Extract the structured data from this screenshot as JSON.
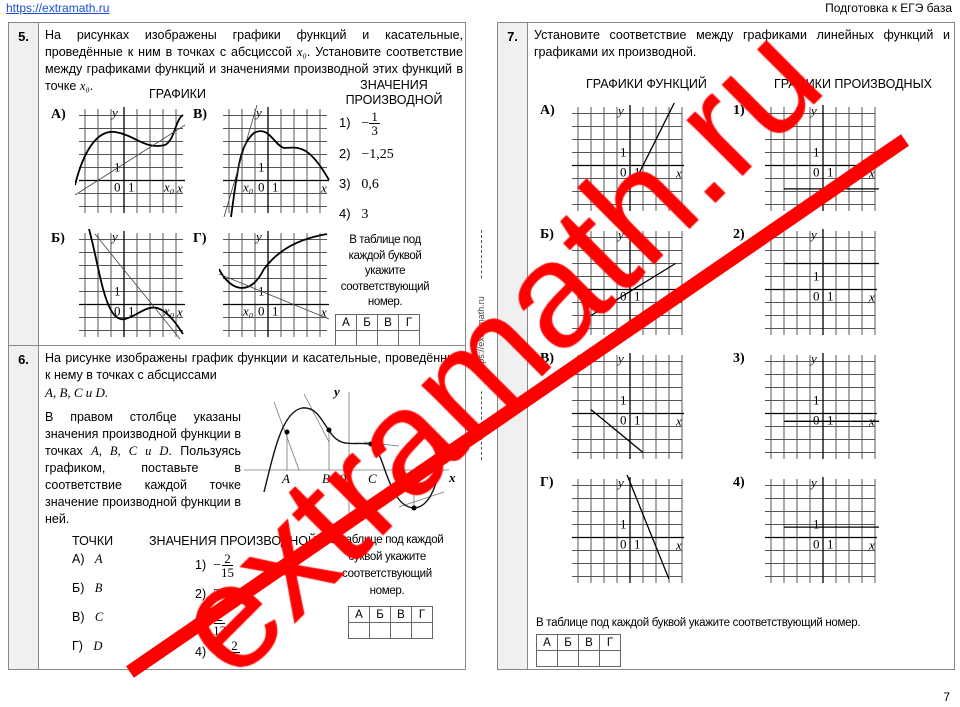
{
  "header": {
    "link": "https://extramath.ru",
    "title": "Подготовка к ЕГЭ база",
    "page": "7"
  },
  "side_url": "https://extramath.ru",
  "axes": {
    "x": "x",
    "y": "y",
    "zero": "0",
    "one": "1",
    "x0": "x₀"
  },
  "task5": {
    "num": "5.",
    "text_a": "На рисунках изображены графики функций и касательные, проведённые к ним в точках с абсциссой ",
    "x0": "x₀",
    "text_b": ". Установите соответствие между графиками функций и значениями производной этих функций в точке ",
    "text_c": ".",
    "graphs_title": "ГРАФИКИ",
    "values_title": "ЗНАЧЕНИЯ ПРОИЗВОДНОЙ",
    "graph_labels": [
      "А)",
      "В)",
      "Б)",
      "Г)"
    ],
    "values": [
      {
        "n": "1)",
        "sign": "−",
        "num": "1",
        "den": "3"
      },
      {
        "n": "2)",
        "v": "−1,25"
      },
      {
        "n": "3)",
        "v": "0,6"
      },
      {
        "n": "4)",
        "v": "3"
      }
    ],
    "table_note": "В таблице под каждой буквой укажите соответствующий номер.",
    "table_head": [
      "А",
      "Б",
      "В",
      "Г"
    ]
  },
  "task6": {
    "num": "6.",
    "text1": "На рисунке изображены график функции и касательные, проведённые к нему в точках с абсциссами",
    "points_inline": "A, B, C и D.",
    "text2": "В правом столбце указаны значения производной функции в точках ",
    "points_inline2": "A, B, C и D",
    "text3": ". Пользуясь графиком, поставьте в соответствие каждой точке значение производной функции в ней.",
    "graph_labels": {
      "y": "y",
      "x": "x",
      "A": "A",
      "B": "B",
      "zero": "0",
      "C": "C",
      "D": "D"
    },
    "points_title": "ТОЧКИ",
    "values_title": "ЗНАЧЕНИЯ ПРОИЗВОДНОЙ",
    "points": [
      {
        "l": "А)",
        "v": "A"
      },
      {
        "l": "Б)",
        "v": "B"
      },
      {
        "l": "В)",
        "v": "C"
      },
      {
        "l": "Г)",
        "v": "D"
      }
    ],
    "values": [
      {
        "n": "1)",
        "pre": "−",
        "num": "2",
        "den": "15"
      },
      {
        "n": "2)",
        "pre": "2"
      },
      {
        "n": "3)",
        "pre": "",
        "num": "2",
        "den": "13"
      },
      {
        "n": "4)",
        "pre": "−1",
        "num": "2",
        "den": "15"
      }
    ],
    "table_note": "В таблице под каждой буквой укажите соответствующий номер.",
    "table_head": [
      "А",
      "Б",
      "В",
      "Г"
    ]
  },
  "task7": {
    "num": "7.",
    "text": "Установите соответствие между графиками линейных функций и графиками их производной.",
    "left_title": "ГРАФИКИ ФУНКЦИЙ",
    "right_title": "ГРАФИКИ ПРОИЗВОДНЫХ",
    "left_labels": [
      "А)",
      "Б)",
      "В)",
      "Г)"
    ],
    "right_labels": [
      "1)",
      "2)",
      "3)",
      "4)"
    ],
    "table_note": "В таблице под каждой буквой укажите соответствующий номер.",
    "table_head": [
      "А",
      "Б",
      "В",
      "Г"
    ]
  },
  "watermark": "extramath.ru",
  "colors": {
    "watermark": "#ff0000",
    "link": "#1a4fd1"
  }
}
